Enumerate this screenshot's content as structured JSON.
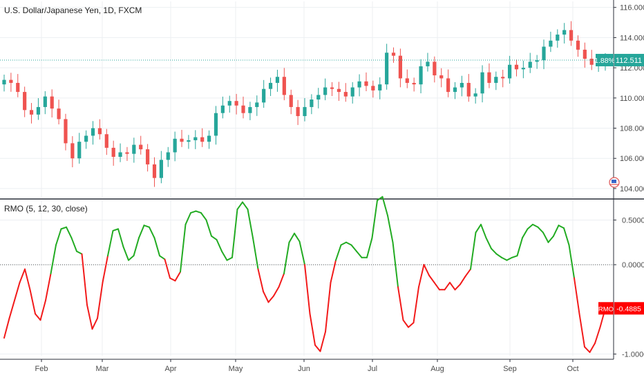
{
  "title": "U.S. Dollar/Japanese Yen, 1D, FXCM",
  "indicator_label": "RMO (5, 12, 30, close)",
  "price_tag": {
    "percent": "1.88%",
    "value": "112.511"
  },
  "rmo_tag": {
    "name": "RMO",
    "value": "-0.4885"
  },
  "colors": {
    "up": "#26a69a",
    "down": "#ef5350",
    "rmo_up": "#22ab22",
    "rmo_down": "#f21a1a",
    "rmo_tag": "#ff0000",
    "price_tag": "#26a69a",
    "grid": "#eceff2",
    "axis_text": "#4a4a4a",
    "baseline": "#555555"
  },
  "chart_data": [
    {
      "type": "candlestick",
      "title": "U.S. Dollar/Japanese Yen, 1D, FXCM",
      "xlabel": "",
      "ylabel": "",
      "x_ticks": [
        "Feb",
        "Mar",
        "Apr",
        "May",
        "Jun",
        "Jul",
        "Aug",
        "Sep",
        "Oct"
      ],
      "y_ticks": [
        "104.000",
        "106.000",
        "108.000",
        "110.000",
        "112.000",
        "114.000",
        "116.000"
      ],
      "ylim": [
        103.4,
        116.4
      ],
      "grid": true,
      "last_value": 112.511,
      "last_change_percent": "1.88%",
      "series": [
        {
          "name": "USD/JPY close",
          "x_range": [
            "mid-Jan",
            "late Oct"
          ],
          "values": [
            111.2,
            111.0,
            110.4,
            109.2,
            108.9,
            109.4,
            110.1,
            109.3,
            108.6,
            107.0,
            106.0,
            107.1,
            107.5,
            108.0,
            107.6,
            106.7,
            106.1,
            106.4,
            106.3,
            106.9,
            106.6,
            105.6,
            104.7,
            105.9,
            106.4,
            107.3,
            107.1,
            107.2,
            107.4,
            107.1,
            107.5,
            109.0,
            109.5,
            109.8,
            109.5,
            109.0,
            109.4,
            109.7,
            110.6,
            111.0,
            111.4,
            110.2,
            109.4,
            108.8,
            109.4,
            109.9,
            110.2,
            110.7,
            110.6,
            110.4,
            110.1,
            110.7,
            111.1,
            110.8,
            110.5,
            110.9,
            113.0,
            112.8,
            111.3,
            111.0,
            110.9,
            112.1,
            112.4,
            111.5,
            111.3,
            110.4,
            110.7,
            111.0,
            110.1,
            110.3,
            111.7,
            111.0,
            111.4,
            111.3,
            112.2,
            111.9,
            112.0,
            112.4,
            112.5,
            113.4,
            113.8,
            114.2,
            114.5,
            113.8,
            113.2,
            112.6,
            112.2,
            112.4,
            112.5
          ]
        }
      ]
    },
    {
      "type": "line",
      "title": "RMO (5, 12, 30, close)",
      "xlabel": "",
      "ylabel": "",
      "x_ticks": [
        "Feb",
        "Mar",
        "Apr",
        "May",
        "Jun",
        "Jul",
        "Aug",
        "Sep",
        "Oct"
      ],
      "y_ticks": [
        "0.5000",
        "0.0000",
        "-1.0000"
      ],
      "ylim": [
        -1.02,
        0.72
      ],
      "zero_line": true,
      "last_value": -0.4885,
      "series": [
        {
          "name": "RMO",
          "x_range": [
            "mid-Jan",
            "late Oct"
          ],
          "colored_by_sign": true,
          "values": [
            -0.82,
            -0.6,
            -0.4,
            -0.2,
            -0.05,
            -0.28,
            -0.55,
            -0.62,
            -0.4,
            -0.1,
            0.22,
            0.4,
            0.42,
            0.3,
            0.15,
            0.12,
            -0.45,
            -0.72,
            -0.6,
            -0.2,
            0.1,
            0.38,
            0.4,
            0.2,
            0.05,
            0.1,
            0.3,
            0.44,
            0.42,
            0.3,
            0.1,
            0.06,
            -0.15,
            -0.18,
            -0.08,
            0.45,
            0.58,
            0.6,
            0.58,
            0.5,
            0.32,
            0.28,
            0.15,
            0.05,
            0.08,
            0.62,
            0.7,
            0.62,
            0.3,
            -0.05,
            -0.3,
            -0.42,
            -0.35,
            -0.25,
            -0.1,
            0.25,
            0.35,
            0.26,
            0.0,
            -0.55,
            -0.9,
            -0.97,
            -0.75,
            -0.2,
            0.05,
            0.22,
            0.25,
            0.22,
            0.15,
            0.08,
            0.08,
            0.3,
            0.72,
            0.76,
            0.55,
            0.25,
            -0.25,
            -0.62,
            -0.7,
            -0.65,
            -0.25,
            0.0,
            -0.12,
            -0.2,
            -0.28,
            -0.28,
            -0.2,
            -0.28,
            -0.22,
            -0.13,
            -0.05,
            0.36,
            0.45,
            0.3,
            0.18,
            0.12,
            0.08,
            0.05,
            0.08,
            0.1,
            0.3,
            0.4,
            0.45,
            0.42,
            0.36,
            0.25,
            0.32,
            0.44,
            0.41,
            0.22,
            -0.15,
            -0.55,
            -0.92,
            -0.98,
            -0.88,
            -0.7,
            -0.49
          ]
        }
      ]
    }
  ]
}
